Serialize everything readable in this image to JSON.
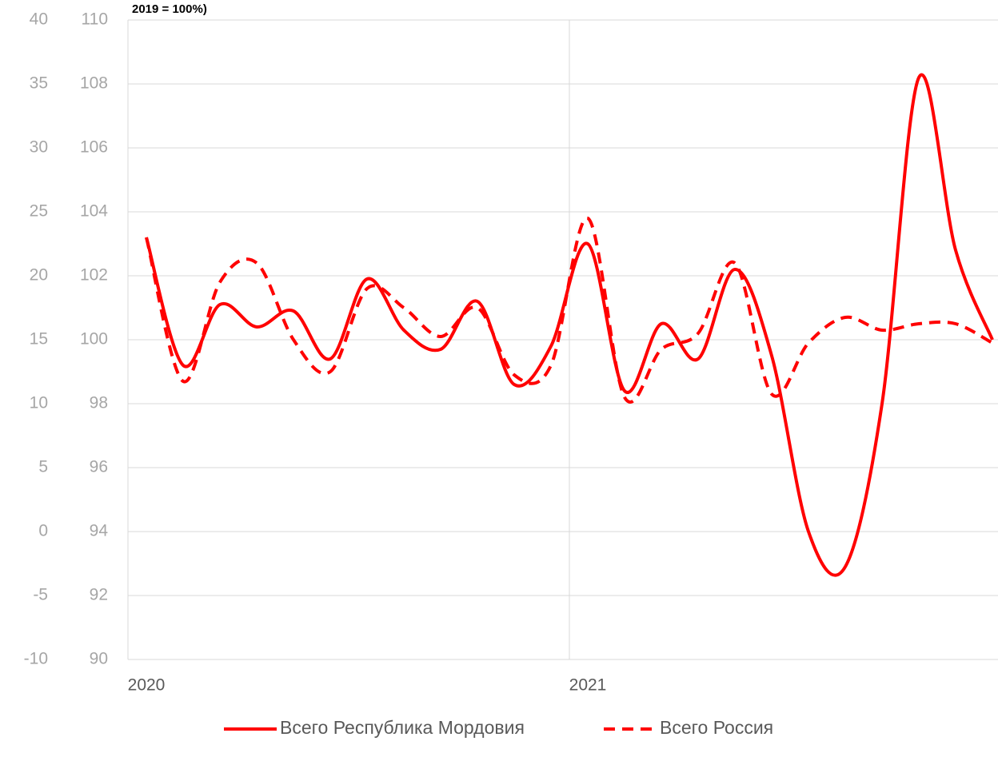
{
  "chart_data": {
    "type": "line",
    "title": "2019 = 100%)",
    "categories": [
      "2020",
      null,
      null,
      null,
      null,
      null,
      null,
      null,
      null,
      null,
      null,
      null,
      "2021",
      null,
      null,
      null,
      null,
      null,
      null,
      null,
      null,
      null,
      null,
      null
    ],
    "series": [
      {
        "name": "Всего Республика Мордовия",
        "color": "#ff0000",
        "dash": "solid",
        "values": [
          103.2,
          99.2,
          101.1,
          100.4,
          100.9,
          99.4,
          101.9,
          100.3,
          99.7,
          101.2,
          98.6,
          99.8,
          103.0,
          98.4,
          100.5,
          99.4,
          102.2,
          99.5,
          94.0,
          92.9,
          98.0,
          108.2,
          102.8,
          100.0
        ]
      },
      {
        "name": "Всего Россия",
        "color": "#ff0000",
        "dash": "dashed",
        "values": [
          103.2,
          98.7,
          101.8,
          102.4,
          100.0,
          99.0,
          101.6,
          101.0,
          100.1,
          101.0,
          98.9,
          99.2,
          103.8,
          98.2,
          99.7,
          100.2,
          102.4,
          98.3,
          99.9,
          100.7,
          100.3,
          100.5,
          100.5,
          99.9
        ]
      }
    ],
    "ylim": [
      90,
      110
    ],
    "yticks": [
      90,
      92,
      94,
      96,
      98,
      100,
      102,
      104,
      106,
      108,
      110
    ],
    "y2lim": [
      -10,
      40
    ],
    "y2ticks": [
      -10,
      -5,
      0,
      5,
      10,
      15,
      20,
      25,
      30,
      35,
      40
    ],
    "grid": true,
    "legend": "bottom"
  }
}
